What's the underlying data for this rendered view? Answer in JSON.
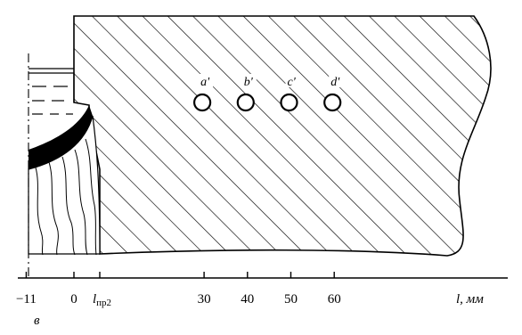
{
  "axis": {
    "ticks": [
      {
        "label": "−11",
        "x": -11
      },
      {
        "label": "0",
        "x": 0
      },
      {
        "label": "30",
        "x": 30
      },
      {
        "label": "40",
        "x": 40
      },
      {
        "label": "50",
        "x": 50
      },
      {
        "label": "60",
        "x": 60
      }
    ],
    "l_pr2_main": "l",
    "l_pr2_sub": "пр2",
    "axis_label": "l, мм",
    "below_label": "в"
  },
  "points": [
    {
      "label": "a'",
      "x": 30
    },
    {
      "label": "b'",
      "x": 40
    },
    {
      "label": "c'",
      "x": 50
    },
    {
      "label": "d'",
      "x": 60
    }
  ],
  "colors": {
    "ink": "#000000",
    "background": "#ffffff"
  }
}
